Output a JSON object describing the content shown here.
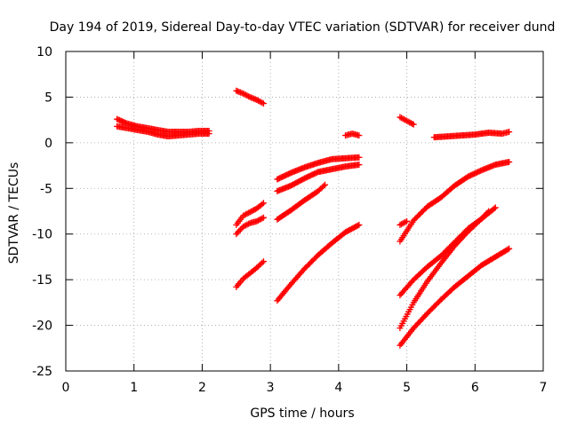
{
  "chart_data": {
    "type": "scatter",
    "title": "Day 194 of 2019, Sidereal Day-to-day VTEC variation (SDTVAR) for receiver dund",
    "xlabel": "GPS time / hours",
    "ylabel": "SDTVAR / TECUs",
    "xlim": [
      0,
      7
    ],
    "ylim": [
      -25,
      10
    ],
    "xticks": [
      0,
      1,
      2,
      3,
      4,
      5,
      6,
      7
    ],
    "yticks": [
      -25,
      -20,
      -15,
      -10,
      -5,
      0,
      5,
      10
    ],
    "xtick_labels": [
      "0",
      "1",
      "2",
      "3",
      "4",
      "5",
      "6",
      "7"
    ],
    "ytick_labels": [
      "-25",
      "-20",
      "-15",
      "-10",
      "-5",
      "0",
      "5",
      "10"
    ],
    "grid": true,
    "marker": "+",
    "color": "#ff0000",
    "series": [
      {
        "x": [
          0.75,
          0.9,
          1.05,
          1.2,
          1.35,
          1.5,
          1.65,
          1.8,
          1.95,
          2.1
        ],
        "y": [
          2.6,
          2.1,
          1.8,
          1.6,
          1.4,
          1.2,
          1.2,
          1.2,
          1.3,
          1.3
        ]
      },
      {
        "x": [
          0.75,
          0.9,
          1.05,
          1.2,
          1.35,
          1.5,
          1.65,
          1.8,
          1.95,
          2.1
        ],
        "y": [
          1.8,
          1.6,
          1.4,
          1.2,
          0.9,
          0.7,
          0.8,
          0.9,
          1.0,
          1.0
        ]
      },
      {
        "x": [
          2.5,
          2.6,
          2.7,
          2.8,
          2.9
        ],
        "y": [
          5.7,
          5.4,
          5.0,
          4.7,
          4.3
        ]
      },
      {
        "x": [
          2.5,
          2.6,
          2.7,
          2.8,
          2.9
        ],
        "y": [
          -9.0,
          -8.0,
          -7.6,
          -7.2,
          -6.6
        ]
      },
      {
        "x": [
          2.5,
          2.6,
          2.7,
          2.8,
          2.9
        ],
        "y": [
          -10.0,
          -9.2,
          -8.8,
          -8.6,
          -8.2
        ]
      },
      {
        "x": [
          2.5,
          2.6,
          2.7,
          2.8,
          2.9
        ],
        "y": [
          -15.8,
          -14.9,
          -14.3,
          -13.7,
          -13.0
        ]
      },
      {
        "x": [
          3.1,
          3.3,
          3.5,
          3.7,
          3.9,
          4.1,
          4.3
        ],
        "y": [
          -4.0,
          -3.3,
          -2.7,
          -2.2,
          -1.8,
          -1.7,
          -1.6
        ]
      },
      {
        "x": [
          3.1,
          3.3,
          3.5,
          3.7,
          3.9,
          4.1,
          4.3
        ],
        "y": [
          -5.3,
          -4.7,
          -3.9,
          -3.2,
          -2.9,
          -2.6,
          -2.4
        ]
      },
      {
        "x": [
          3.1,
          3.3,
          3.5,
          3.7,
          3.8
        ],
        "y": [
          -8.4,
          -7.4,
          -6.3,
          -5.3,
          -4.6
        ]
      },
      {
        "x": [
          3.1,
          3.3,
          3.5,
          3.7,
          3.9,
          4.1,
          4.3
        ],
        "y": [
          -17.3,
          -15.5,
          -13.8,
          -12.3,
          -11.0,
          -9.8,
          -9.0
        ]
      },
      {
        "x": [
          4.1,
          4.2,
          4.3
        ],
        "y": [
          0.8,
          1.0,
          0.8
        ]
      },
      {
        "x": [
          4.9,
          5.0,
          5.1
        ],
        "y": [
          2.8,
          2.4,
          2.0
        ]
      },
      {
        "x": [
          4.9,
          5.0
        ],
        "y": [
          -9.0,
          -8.6
        ]
      },
      {
        "x": [
          5.4,
          5.6,
          5.8,
          6.0,
          6.2,
          6.4,
          6.5
        ],
        "y": [
          0.6,
          0.7,
          0.8,
          0.9,
          1.1,
          1.0,
          1.2
        ]
      },
      {
        "x": [
          4.9,
          5.1,
          5.3,
          5.5,
          5.7,
          5.9,
          6.1,
          6.3,
          6.5
        ],
        "y": [
          -10.8,
          -8.5,
          -7.0,
          -6.0,
          -4.7,
          -3.7,
          -3.0,
          -2.4,
          -2.1
        ]
      },
      {
        "x": [
          4.9,
          5.1,
          5.3,
          5.5,
          5.7,
          5.9,
          6.1,
          6.3
        ],
        "y": [
          -16.7,
          -15.0,
          -13.6,
          -12.4,
          -10.9,
          -9.4,
          -8.3,
          -7.1
        ]
      },
      {
        "x": [
          4.9,
          5.1,
          5.3,
          5.5,
          5.7,
          5.9,
          6.1,
          6.2
        ],
        "y": [
          -20.3,
          -17.5,
          -15.2,
          -13.2,
          -11.3,
          -9.7,
          -8.3,
          -7.5
        ]
      },
      {
        "x": [
          4.9,
          5.1,
          5.3,
          5.5,
          5.7,
          5.9,
          6.1,
          6.3,
          6.5
        ],
        "y": [
          -22.2,
          -20.3,
          -18.7,
          -17.2,
          -15.8,
          -14.6,
          -13.4,
          -12.5,
          -11.6
        ]
      }
    ]
  }
}
